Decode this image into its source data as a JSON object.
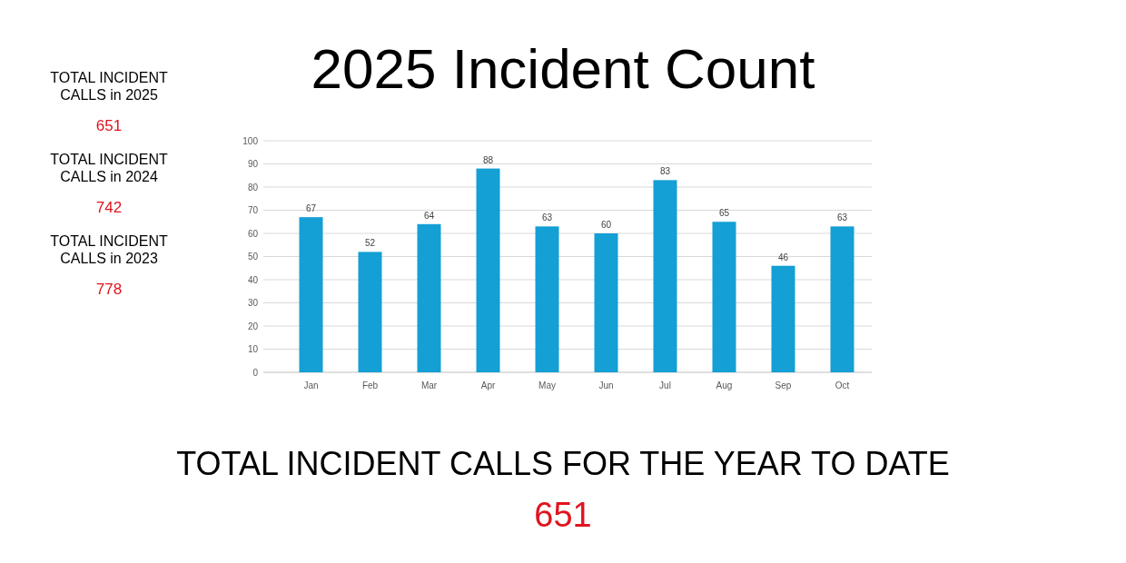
{
  "chart_data": {
    "type": "bar",
    "title": "2025 Incident Count",
    "categories": [
      "Jan",
      "Feb",
      "Mar",
      "Apr",
      "May",
      "Jun",
      "Jul",
      "Aug",
      "Sep",
      "Oct"
    ],
    "values": [
      67,
      52,
      64,
      88,
      63,
      60,
      83,
      65,
      46,
      63
    ],
    "color": "#149fd5",
    "ylim": [
      0,
      100
    ],
    "yticks": [
      0,
      10,
      20,
      30,
      40,
      50,
      60,
      70,
      80,
      90,
      100
    ],
    "grid": "y",
    "data_labels": true,
    "annotations": [
      "TOTAL INCIDENT CALLS in 2025",
      "651",
      "TOTAL INCIDENT CALLS in 2024",
      "742",
      "TOTAL INCIDENT CALLS in 2023",
      "778",
      "TOTAL INCIDENT CALLS FOR THE YEAR TO DATE",
      "651"
    ]
  }
}
